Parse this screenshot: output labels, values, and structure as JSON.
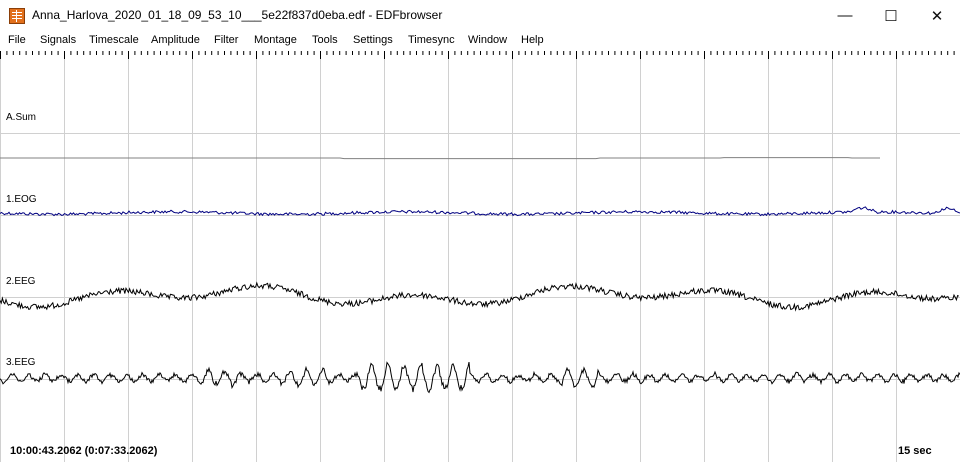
{
  "window": {
    "title": "Anna_Harlova_2020_01_18_09_53_10___5e22f837d0eba.edf - EDFbrowser",
    "minimize_glyph": "—",
    "maximize_glyph": "☐",
    "close_glyph": "✕"
  },
  "menu": {
    "items": [
      "File",
      "Signals",
      "Timescale",
      "Amplitude",
      "Filter",
      "Montage",
      "Tools",
      "Settings",
      "Timesync",
      "Window",
      "Help"
    ]
  },
  "signals": [
    {
      "label": "A.Sum",
      "color": "#808080"
    },
    {
      "label": "1.EOG",
      "color": "#000080"
    },
    {
      "label": "2.EEG",
      "color": "#000000"
    },
    {
      "label": "3.EEG",
      "color": "#000000"
    }
  ],
  "status": {
    "time": "10:00:43.2062 (0:07:33.2062)",
    "timescale": "15 sec"
  },
  "colors": {
    "grid": "#d0d0d0",
    "ruler": "#000000"
  }
}
